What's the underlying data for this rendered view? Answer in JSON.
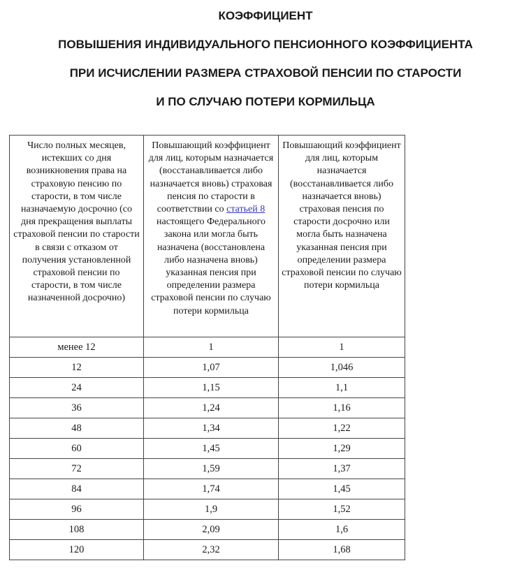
{
  "title": {
    "lines": [
      "КОЭФФИЦИЕНТ",
      "ПОВЫШЕНИЯ ИНДИВИДУАЛЬНОГО ПЕНСИОННОГО КОЭФФИЦИЕНТА",
      "ПРИ ИСЧИСЛЕНИИ РАЗМЕРА СТРАХОВОЙ ПЕНСИИ ПО СТАРОСТИ",
      "И ПО СЛУЧАЮ ПОТЕРИ КОРМИЛЬЦА"
    ]
  },
  "table": {
    "headers": [
      {
        "text": "Число полных месяцев, истекших со дня возникновения права на страховую пенсию по старости, в том числе назначаемую досрочно (со дня прекращения выплаты страховой пенсии по старости в связи с отказом от получения установленной страховой пенсии по старости, в том числе назначенной досрочно)"
      },
      {
        "pre_link": "Повышающий коэффициент для лиц, которым назначается (восстанавливается либо назначается вновь) страховая пенсия по старости в соответствии со ",
        "link_text": "статьей 8",
        "post_link": " настоящего Федерального закона или могла быть назначена (восстановлена либо назначена вновь) указанная пенсия при определении размера страховой пенсии по случаю потери кормильца"
      },
      {
        "text": "Повышающий коэффициент для лиц, которым назначается (восстанавливается либо назначается вновь) страховая пенсия по старости досрочно или могла быть назначена указанная пенсия при определении размера страховой пенсии по случаю потери кормильца"
      }
    ],
    "rows": [
      [
        "менее 12",
        "1",
        "1"
      ],
      [
        "12",
        "1,07",
        "1,046"
      ],
      [
        "24",
        "1,15",
        "1,1"
      ],
      [
        "36",
        "1,24",
        "1,16"
      ],
      [
        "48",
        "1,34",
        "1,22"
      ],
      [
        "60",
        "1,45",
        "1,29"
      ],
      [
        "72",
        "1,59",
        "1,37"
      ],
      [
        "84",
        "1,74",
        "1,45"
      ],
      [
        "96",
        "1,9",
        "1,52"
      ],
      [
        "108",
        "2,09",
        "1,6"
      ],
      [
        "120",
        "2,32",
        "1,68"
      ]
    ]
  },
  "colors": {
    "link": "#3535c4",
    "border": "#454545",
    "text": "#1a1a1a",
    "background": "#ffffff"
  }
}
